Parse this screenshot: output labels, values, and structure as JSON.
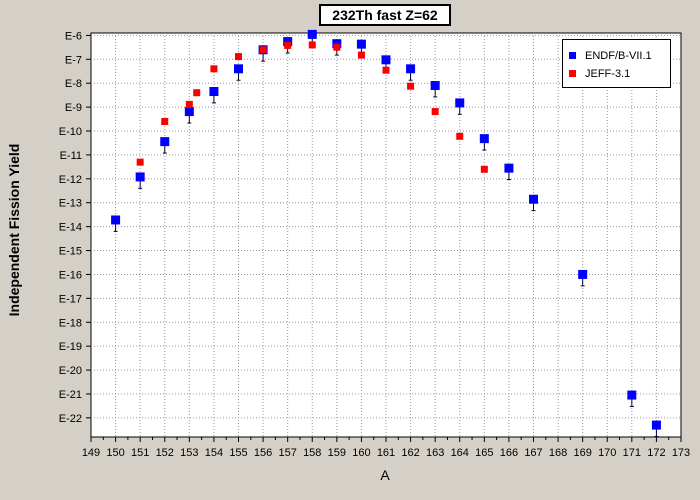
{
  "chart_data": {
    "type": "scatter",
    "title": "232Th fast Z=62",
    "xlabel": "A",
    "ylabel": "Independent Fission Yield",
    "xlim": [
      149,
      173
    ],
    "ylim_log10": [
      -22.8,
      -5.9
    ],
    "log_scale_y": true,
    "grid": true,
    "legend_position": "top-right",
    "x_ticks": [
      "149",
      "150",
      "151",
      "152",
      "153",
      "154",
      "155",
      "156",
      "157",
      "158",
      "159",
      "160",
      "161",
      "162",
      "163",
      "164",
      "165",
      "166",
      "167",
      "168",
      "169",
      "170",
      "171",
      "172",
      "173"
    ],
    "y_ticks": [
      "E-6",
      "E-7",
      "E-8",
      "E-9",
      "E-10",
      "E-11",
      "E-12",
      "E-13",
      "E-14",
      "E-15",
      "E-16",
      "E-17",
      "E-18",
      "E-19",
      "E-20",
      "E-21",
      "E-22"
    ],
    "series": [
      {
        "name": "ENDF/B-VII.1",
        "color": "#0000ff",
        "marker": "square",
        "x": [
          150,
          151,
          152,
          153,
          154,
          155,
          156,
          157,
          158,
          159,
          160,
          161,
          162,
          163,
          164,
          165,
          166,
          167,
          169,
          171,
          172
        ],
        "y": [
          "1.9E-14",
          "1.2E-12",
          "3.6E-11",
          "6.5E-10",
          "4.5E-9",
          "4.0E-8",
          "2.5E-7",
          "5.5E-7",
          "1.1E-6",
          "4.5E-7",
          "4.3E-7",
          "9.5E-8",
          "4.0E-8",
          "8.0E-9",
          "1.5E-9",
          "4.8E-11",
          "2.8E-12",
          "1.4E-13",
          "1.0E-16",
          "9.0E-22",
          "5.0E-23"
        ],
        "error_down_factor": 3
      },
      {
        "name": "JEFF-3.1",
        "color": "#ff0000",
        "marker": "square",
        "x": [
          151,
          152,
          153,
          153.3,
          154,
          155,
          156,
          157,
          158,
          159,
          160,
          161,
          162,
          163,
          164,
          165
        ],
        "y": [
          "5.0E-12",
          "2.5E-10",
          "1.3E-9",
          "4.0E-9",
          "4.0E-8",
          "1.3E-7",
          "2.5E-7",
          "3.8E-7",
          "4.0E-7",
          "3.2E-7",
          "1.5E-7",
          "3.5E-8",
          "7.5E-9",
          "6.5E-10",
          "6.0E-11",
          "2.5E-12"
        ]
      }
    ]
  }
}
